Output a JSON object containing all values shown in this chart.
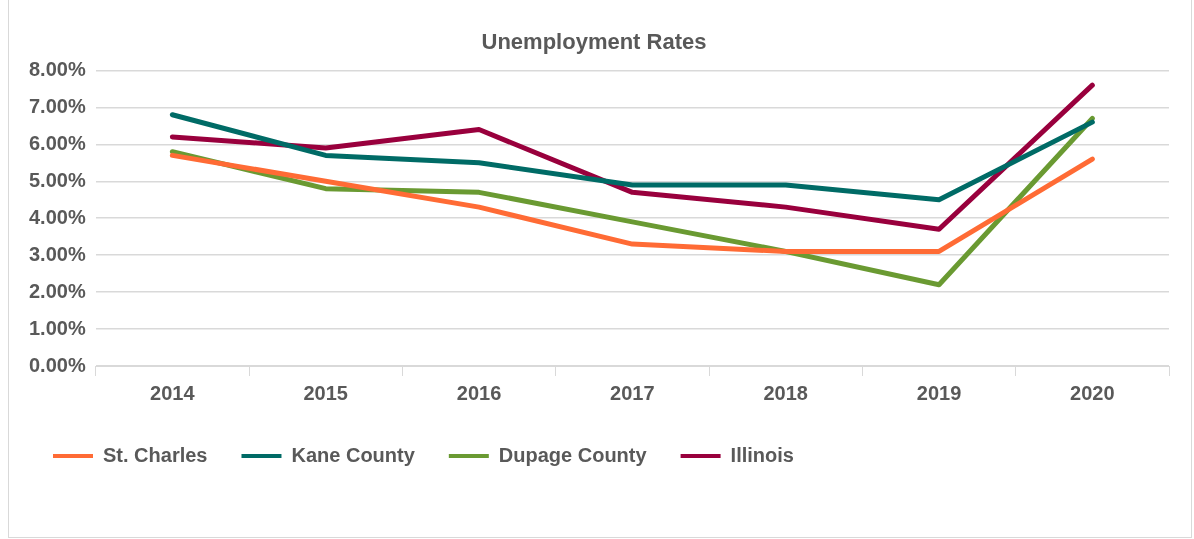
{
  "chart_data": {
    "type": "line",
    "title": "Unemployment Rates",
    "categories": [
      "2014",
      "2015",
      "2016",
      "2017",
      "2018",
      "2019",
      "2020"
    ],
    "series": [
      {
        "name": "St. Charles",
        "color": "#ff6b35",
        "values": [
          5.7,
          5.0,
          4.3,
          3.3,
          3.1,
          3.1,
          5.6
        ]
      },
      {
        "name": "Kane County",
        "color": "#006b66",
        "values": [
          6.8,
          5.7,
          5.5,
          4.9,
          4.9,
          4.5,
          6.6
        ]
      },
      {
        "name": "Dupage County",
        "color": "#6a9a32",
        "values": [
          5.8,
          4.8,
          4.7,
          3.9,
          3.1,
          2.2,
          6.7
        ]
      },
      {
        "name": "Illinois",
        "color": "#99003d",
        "values": [
          6.2,
          5.9,
          6.4,
          4.7,
          4.3,
          3.7,
          7.6
        ]
      }
    ],
    "ylim": [
      0,
      8
    ],
    "yticks": [
      {
        "value": 0,
        "label": "0.00%"
      },
      {
        "value": 1,
        "label": "1.00%"
      },
      {
        "value": 2,
        "label": "2.00%"
      },
      {
        "value": 3,
        "label": "3.00%"
      },
      {
        "value": 4,
        "label": "4.00%"
      },
      {
        "value": 5,
        "label": "5.00%"
      },
      {
        "value": 6,
        "label": "6.00%"
      },
      {
        "value": 7,
        "label": "7.00%"
      },
      {
        "value": 8,
        "label": "8.00%"
      }
    ],
    "grid": "y",
    "legend": "bottom",
    "marker": "none",
    "line_style": "solid"
  }
}
